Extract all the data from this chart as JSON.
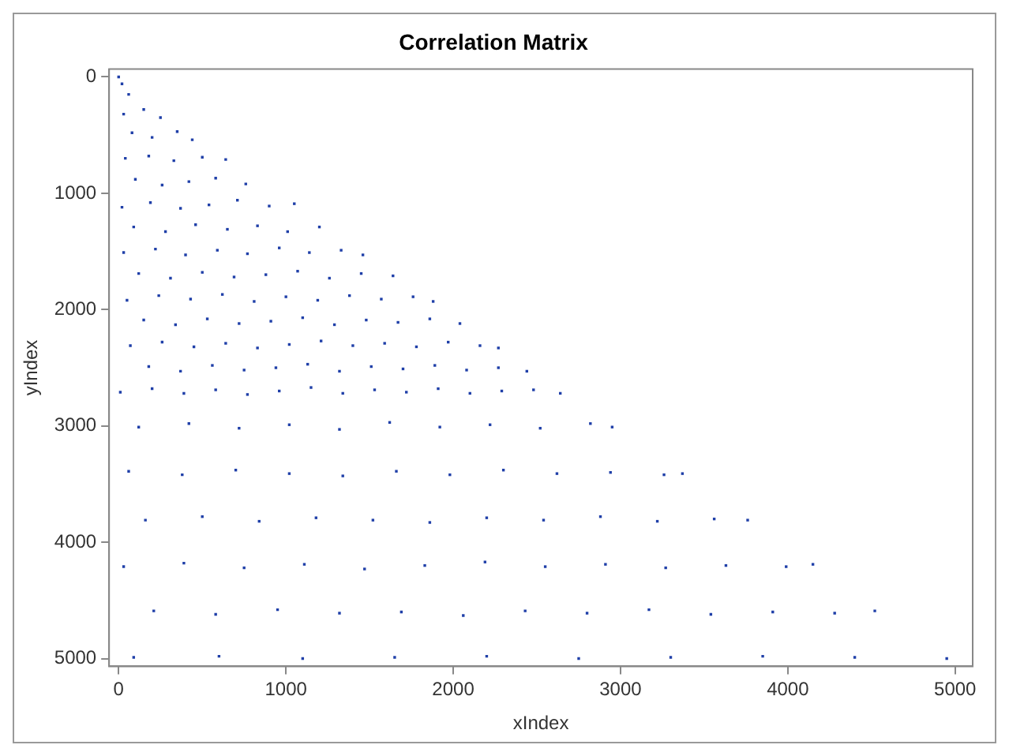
{
  "chart_data": {
    "type": "scatter",
    "title": "Correlation Matrix",
    "xlabel": "xIndex",
    "ylabel": "yIndex",
    "xlim": [
      -57,
      5105
    ],
    "ylim": [
      5067,
      -67
    ],
    "xticks": [
      0,
      1000,
      2000,
      3000,
      4000,
      5000
    ],
    "yticks": [
      0,
      1000,
      2000,
      3000,
      4000,
      5000
    ],
    "grid": false,
    "legend": false,
    "marker": "square",
    "series": [
      {
        "color": "#1f3fa8",
        "x": [
          0,
          20,
          60,
          30,
          150,
          250,
          80,
          200,
          350,
          440,
          40,
          180,
          330,
          500,
          640,
          100,
          260,
          420,
          580,
          760,
          20,
          190,
          370,
          540,
          710,
          900,
          1050,
          90,
          280,
          460,
          650,
          830,
          1010,
          1200,
          30,
          220,
          400,
          590,
          770,
          960,
          1140,
          1330,
          1460,
          120,
          310,
          500,
          690,
          880,
          1070,
          1260,
          1450,
          1640,
          50,
          240,
          430,
          620,
          810,
          1000,
          1190,
          1380,
          1570,
          1760,
          1880,
          150,
          340,
          530,
          720,
          910,
          1100,
          1290,
          1480,
          1670,
          1860,
          2040,
          70,
          260,
          450,
          640,
          830,
          1020,
          1210,
          1400,
          1590,
          1780,
          1970,
          2160,
          2270,
          180,
          370,
          560,
          750,
          940,
          1130,
          1320,
          1510,
          1700,
          1890,
          2080,
          2270,
          2440,
          10,
          200,
          390,
          580,
          770,
          960,
          1150,
          1340,
          1530,
          1720,
          1910,
          2100,
          2290,
          2480,
          2640,
          120,
          420,
          720,
          1020,
          1320,
          1620,
          1920,
          2220,
          2520,
          2820,
          2950,
          60,
          380,
          700,
          1020,
          1340,
          1660,
          1980,
          2300,
          2620,
          2940,
          3260,
          3370,
          160,
          500,
          840,
          1180,
          1520,
          1860,
          2200,
          2540,
          2880,
          3220,
          3560,
          3760,
          30,
          390,
          750,
          1110,
          1470,
          1830,
          2190,
          2550,
          2910,
          3270,
          3630,
          3990,
          4150,
          210,
          580,
          950,
          1320,
          1690,
          2060,
          2430,
          2800,
          3170,
          3540,
          3910,
          4280,
          4520,
          90,
          600,
          1100,
          1650,
          2200,
          2750,
          3300,
          3850,
          4400,
          4950
        ],
        "values": [
          0,
          60,
          150,
          320,
          280,
          350,
          480,
          520,
          470,
          540,
          700,
          680,
          720,
          690,
          710,
          880,
          930,
          900,
          870,
          920,
          1120,
          1080,
          1130,
          1100,
          1060,
          1110,
          1090,
          1290,
          1330,
          1270,
          1310,
          1280,
          1330,
          1290,
          1510,
          1480,
          1530,
          1490,
          1520,
          1470,
          1510,
          1490,
          1530,
          1690,
          1730,
          1680,
          1720,
          1700,
          1670,
          1730,
          1690,
          1710,
          1920,
          1880,
          1910,
          1870,
          1930,
          1890,
          1920,
          1880,
          1910,
          1890,
          1930,
          2090,
          2130,
          2080,
          2120,
          2100,
          2070,
          2130,
          2090,
          2110,
          2080,
          2120,
          2310,
          2280,
          2320,
          2290,
          2330,
          2300,
          2270,
          2310,
          2290,
          2320,
          2280,
          2310,
          2330,
          2490,
          2530,
          2480,
          2520,
          2500,
          2470,
          2530,
          2490,
          2510,
          2480,
          2520,
          2500,
          2530,
          2710,
          2680,
          2720,
          2690,
          2730,
          2700,
          2670,
          2720,
          2690,
          2710,
          2680,
          2720,
          2700,
          2690,
          2720,
          3010,
          2980,
          3020,
          2990,
          3030,
          2970,
          3010,
          2990,
          3020,
          2980,
          3010,
          3390,
          3420,
          3380,
          3410,
          3430,
          3390,
          3420,
          3380,
          3410,
          3400,
          3420,
          3410,
          3810,
          3780,
          3820,
          3790,
          3810,
          3830,
          3790,
          3810,
          3780,
          3820,
          3800,
          3810,
          4210,
          4180,
          4220,
          4190,
          4230,
          4200,
          4170,
          4210,
          4190,
          4220,
          4200,
          4210,
          4190,
          4590,
          4620,
          4580,
          4610,
          4600,
          4630,
          4590,
          4610,
          4580,
          4620,
          4600,
          4610,
          4590,
          4990,
          4980,
          5000,
          4990,
          4980,
          5000,
          4990,
          4980,
          4990,
          5000
        ]
      }
    ]
  }
}
